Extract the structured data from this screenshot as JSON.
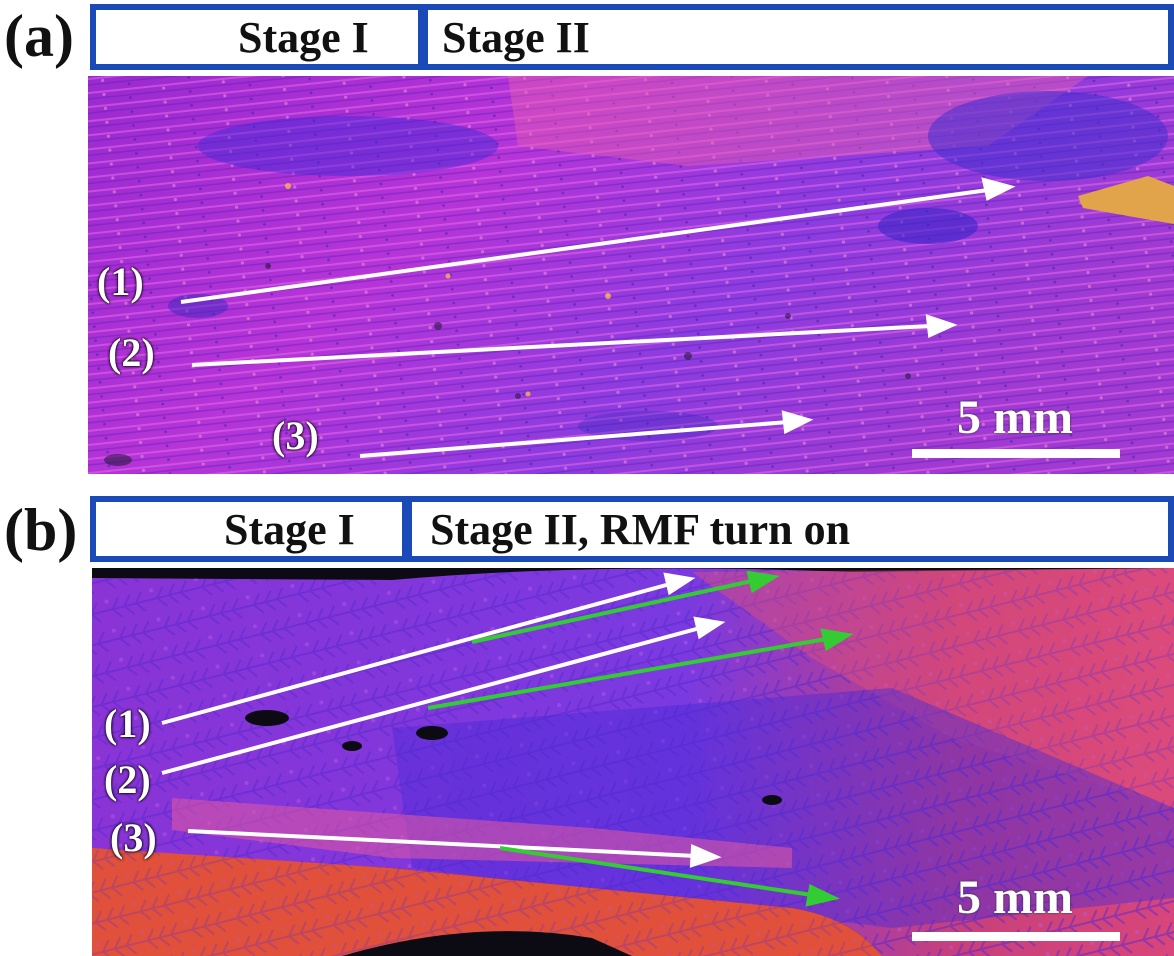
{
  "panels": [
    {
      "letter": "(a)",
      "stages": [
        "Stage I",
        "Stage II"
      ],
      "tracks": [
        "(1)",
        "(2)",
        "(3)"
      ],
      "scale": "5 mm"
    },
    {
      "letter": "(b)",
      "stages": [
        "Stage I",
        "Stage II, RMF turn on"
      ],
      "tracks": [
        "(1)",
        "(2)",
        "(3)"
      ],
      "scale": "5 mm"
    }
  ],
  "colors": {
    "frame": "#1a49b8",
    "arrow_primary": "#ffffff",
    "arrow_secondary": "#33cc33",
    "grain_violet": "#8a2be2",
    "grain_magenta": "#c13bd6",
    "grain_pink": "#e0529a",
    "grain_red": "#e0503a",
    "grain_blue": "#4a2ad8",
    "grain_gold": "#e2a44a"
  }
}
